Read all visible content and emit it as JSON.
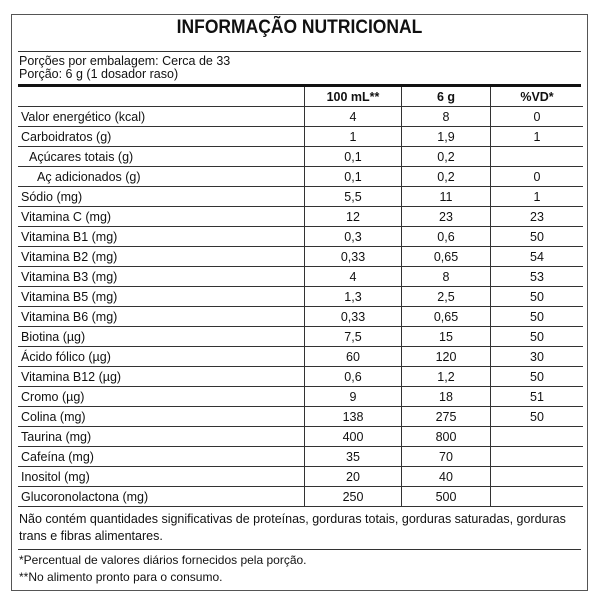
{
  "title": "INFORMAÇÃO NUTRICIONAL",
  "portions_per_package": "Porções por embalagem: Cerca de 33",
  "portion": "Porção: 6 g (1 dosador raso)",
  "headers": [
    "",
    "100 mL**",
    "6 g",
    "%VD*"
  ],
  "rows": [
    [
      "Valor energético (kcal)",
      "4",
      "8",
      "0"
    ],
    [
      "Carboidratos (g)",
      "1",
      "1,9",
      "1"
    ],
    [
      "  Açúcares totais (g)",
      "0,1",
      "0,2",
      ""
    ],
    [
      "    Aç adicionados (g)",
      "0,1",
      "0,2",
      "0"
    ],
    [
      "Sódio (mg)",
      "5,5",
      "11",
      "1"
    ],
    [
      "Vitamina C (mg)",
      "12",
      "23",
      "23"
    ],
    [
      "Vitamina B1 (mg)",
      "0,3",
      "0,6",
      "50"
    ],
    [
      "Vitamina B2 (mg)",
      "0,33",
      "0,65",
      "54"
    ],
    [
      "Vitamina B3 (mg)",
      "4",
      "8",
      "53"
    ],
    [
      "Vitamina B5 (mg)",
      "1,3",
      "2,5",
      "50"
    ],
    [
      "Vitamina B6 (mg)",
      "0,33",
      "0,65",
      "50"
    ],
    [
      "Biotina (µg)",
      "7,5",
      "15",
      "50"
    ],
    [
      "Ácido fólico (µg)",
      "60",
      "120",
      "30"
    ],
    [
      "Vitamina B12 (µg)",
      "0,6",
      "1,2",
      "50"
    ],
    [
      "Cromo (µg)",
      "9",
      "18",
      "51"
    ],
    [
      "Colina (mg)",
      "138",
      "275",
      "50"
    ],
    [
      "Taurina (mg)",
      "400",
      "800",
      ""
    ],
    [
      "Cafeína (mg)",
      "35",
      "70",
      ""
    ],
    [
      "Inositol (mg)",
      "20",
      "40",
      ""
    ],
    [
      "Glucoronolactona (mg)",
      "250",
      "500",
      ""
    ]
  ],
  "note": "Não contém quantidades significativas de proteínas, gorduras totais, gorduras saturadas, gorduras trans e fibras alimentares.",
  "footnotes": [
    "*Percentual de valores diários fornecidos pela porção.",
    "**No alimento pronto para o consumo."
  ]
}
